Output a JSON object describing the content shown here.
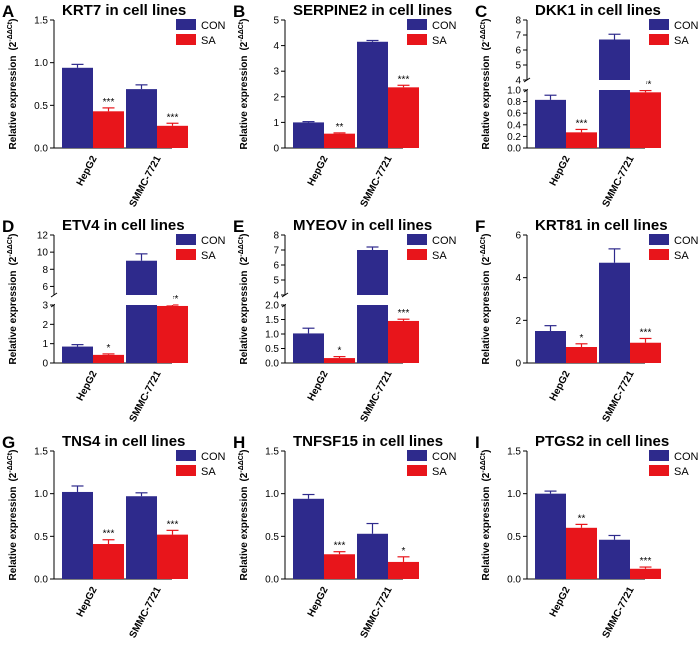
{
  "figure": {
    "legend_labels": [
      "CON",
      "SA"
    ],
    "ylabel": "Relative expression",
    "ylabel_formula": "(2",
    "ylabel_exponent": "-ΔΔCt",
    "ylabel_close": ")",
    "colors": {
      "con": "#2e2a8c",
      "sa": "#e8151b"
    }
  },
  "chart_data": [
    {
      "letter": "A",
      "title": "KRT7 in cell lines",
      "type": "bar",
      "categories": [
        "HepG2",
        "SMMC-7721"
      ],
      "series": [
        {
          "name": "CON",
          "values": [
            0.94,
            0.69
          ],
          "errors": [
            0.04,
            0.05
          ]
        },
        {
          "name": "SA",
          "values": [
            0.43,
            0.26
          ],
          "errors": [
            0.04,
            0.03
          ]
        }
      ],
      "significance": [
        "***",
        "***"
      ],
      "ylim": [
        0,
        1.5
      ],
      "ticks": [
        0,
        0.5,
        1.0,
        1.5
      ],
      "tick_labels": [
        "0.0",
        "0.5",
        "1.0",
        "1.5"
      ]
    },
    {
      "letter": "B",
      "title": "SERPINE2 in cell lines",
      "type": "bar",
      "categories": [
        "HepG2",
        "SMMC-7721"
      ],
      "series": [
        {
          "name": "CON",
          "values": [
            1.0,
            4.15
          ],
          "errors": [
            0.03,
            0.05
          ]
        },
        {
          "name": "SA",
          "values": [
            0.56,
            2.37
          ],
          "errors": [
            0.03,
            0.08
          ]
        }
      ],
      "significance": [
        "**",
        "***"
      ],
      "ylim": [
        0,
        5
      ],
      "ticks": [
        0,
        1,
        2,
        3,
        4,
        5
      ],
      "tick_labels": [
        "0",
        "1",
        "2",
        "3",
        "4",
        "5"
      ]
    },
    {
      "letter": "C",
      "title": "DKK1 in cell lines",
      "type": "bar",
      "categories": [
        "HepG2",
        "SMMC-7721"
      ],
      "series": [
        {
          "name": "CON",
          "values": [
            0.83,
            6.7
          ],
          "errors": [
            0.08,
            0.35
          ]
        },
        {
          "name": "SA",
          "values": [
            0.27,
            0.96
          ],
          "errors": [
            0.05,
            0.03
          ]
        }
      ],
      "significance": [
        "***",
        "***"
      ],
      "broken_axis": {
        "lower": [
          0,
          1.0
        ],
        "upper": [
          4,
          8
        ]
      },
      "lower_ticks": [
        0,
        0.2,
        0.4,
        0.6,
        0.8,
        1.0
      ],
      "lower_tick_labels": [
        "0.0",
        "0.2",
        "0.4",
        "0.6",
        "0.8",
        "1.0"
      ],
      "upper_ticks": [
        4,
        5,
        6,
        7,
        8
      ],
      "upper_tick_labels": [
        "4",
        "5",
        "6",
        "7",
        "8"
      ]
    },
    {
      "letter": "D",
      "title": "ETV4 in cell lines",
      "type": "bar",
      "categories": [
        "HepG2",
        "SMMC-7721"
      ],
      "series": [
        {
          "name": "CON",
          "values": [
            0.85,
            9.0
          ],
          "errors": [
            0.1,
            0.8
          ]
        },
        {
          "name": "SA",
          "values": [
            0.42,
            2.95
          ],
          "errors": [
            0.05,
            0.3
          ]
        }
      ],
      "significance": [
        "*",
        "***"
      ],
      "broken_axis": {
        "lower": [
          0,
          3
        ],
        "upper": [
          5,
          12
        ]
      },
      "lower_ticks": [
        0,
        1,
        2,
        3
      ],
      "lower_tick_labels": [
        "0",
        "1",
        "2",
        "3"
      ],
      "upper_ticks": [
        6,
        8,
        10,
        12
      ],
      "upper_tick_labels": [
        "6",
        "8",
        "10",
        "12"
      ]
    },
    {
      "letter": "E",
      "title": "MYEOV in cell lines",
      "type": "bar",
      "categories": [
        "HepG2",
        "SMMC-7721"
      ],
      "series": [
        {
          "name": "CON",
          "values": [
            1.02,
            7.0
          ],
          "errors": [
            0.18,
            0.2
          ]
        },
        {
          "name": "SA",
          "values": [
            0.17,
            1.45
          ],
          "errors": [
            0.05,
            0.06
          ]
        }
      ],
      "significance": [
        "*",
        "***"
      ],
      "broken_axis": {
        "lower": [
          0,
          2.0
        ],
        "upper": [
          4,
          8
        ]
      },
      "lower_ticks": [
        0,
        0.5,
        1.0,
        1.5,
        2.0
      ],
      "lower_tick_labels": [
        "0.0",
        "0.5",
        "1.0",
        "1.5",
        "2.0"
      ],
      "upper_ticks": [
        4,
        5,
        6,
        7,
        8
      ],
      "upper_tick_labels": [
        "4",
        "5",
        "6",
        "7",
        "8"
      ]
    },
    {
      "letter": "F",
      "title": "KRT81 in cell lines",
      "type": "bar",
      "categories": [
        "HepG2",
        "SMMC-7721"
      ],
      "series": [
        {
          "name": "CON",
          "values": [
            1.5,
            4.7
          ],
          "errors": [
            0.25,
            0.65
          ]
        },
        {
          "name": "SA",
          "values": [
            0.75,
            0.95
          ],
          "errors": [
            0.15,
            0.2
          ]
        }
      ],
      "significance": [
        "*",
        "***"
      ],
      "ylim": [
        0,
        6
      ],
      "ticks": [
        0,
        2,
        4,
        6
      ],
      "tick_labels": [
        "0",
        "2",
        "4",
        "6"
      ]
    },
    {
      "letter": "G",
      "title": "TNS4 in cell lines",
      "type": "bar",
      "categories": [
        "HepG2",
        "SMMC-7721"
      ],
      "series": [
        {
          "name": "CON",
          "values": [
            1.02,
            0.97
          ],
          "errors": [
            0.07,
            0.04
          ]
        },
        {
          "name": "SA",
          "values": [
            0.41,
            0.52
          ],
          "errors": [
            0.05,
            0.05
          ]
        }
      ],
      "significance": [
        "***",
        "***"
      ],
      "ylim": [
        0,
        1.5
      ],
      "ticks": [
        0,
        0.5,
        1.0,
        1.5
      ],
      "tick_labels": [
        "0.0",
        "0.5",
        "1.0",
        "1.5"
      ]
    },
    {
      "letter": "H",
      "title": "TNFSF15 in cell lines",
      "type": "bar",
      "categories": [
        "HepG2",
        "SMMC-7721"
      ],
      "series": [
        {
          "name": "CON",
          "values": [
            0.94,
            0.53
          ],
          "errors": [
            0.05,
            0.12
          ]
        },
        {
          "name": "SA",
          "values": [
            0.29,
            0.2
          ],
          "errors": [
            0.03,
            0.06
          ]
        }
      ],
      "significance": [
        "***",
        "*"
      ],
      "ylim": [
        0,
        1.5
      ],
      "ticks": [
        0,
        0.5,
        1.0,
        1.5
      ],
      "tick_labels": [
        "0.0",
        "0.5",
        "1.0",
        "1.5"
      ]
    },
    {
      "letter": "I",
      "title": "PTGS2 in cell lines",
      "type": "bar",
      "categories": [
        "HepG2",
        "SMMC-7721"
      ],
      "series": [
        {
          "name": "CON",
          "values": [
            1.0,
            0.46
          ],
          "errors": [
            0.03,
            0.05
          ]
        },
        {
          "name": "SA",
          "values": [
            0.6,
            0.12
          ],
          "errors": [
            0.04,
            0.02
          ]
        }
      ],
      "significance": [
        "**",
        "***"
      ],
      "ylim": [
        0,
        1.5
      ],
      "ticks": [
        0,
        0.5,
        1.0,
        1.5
      ],
      "tick_labels": [
        "0.0",
        "0.5",
        "1.0",
        "1.5"
      ]
    }
  ]
}
